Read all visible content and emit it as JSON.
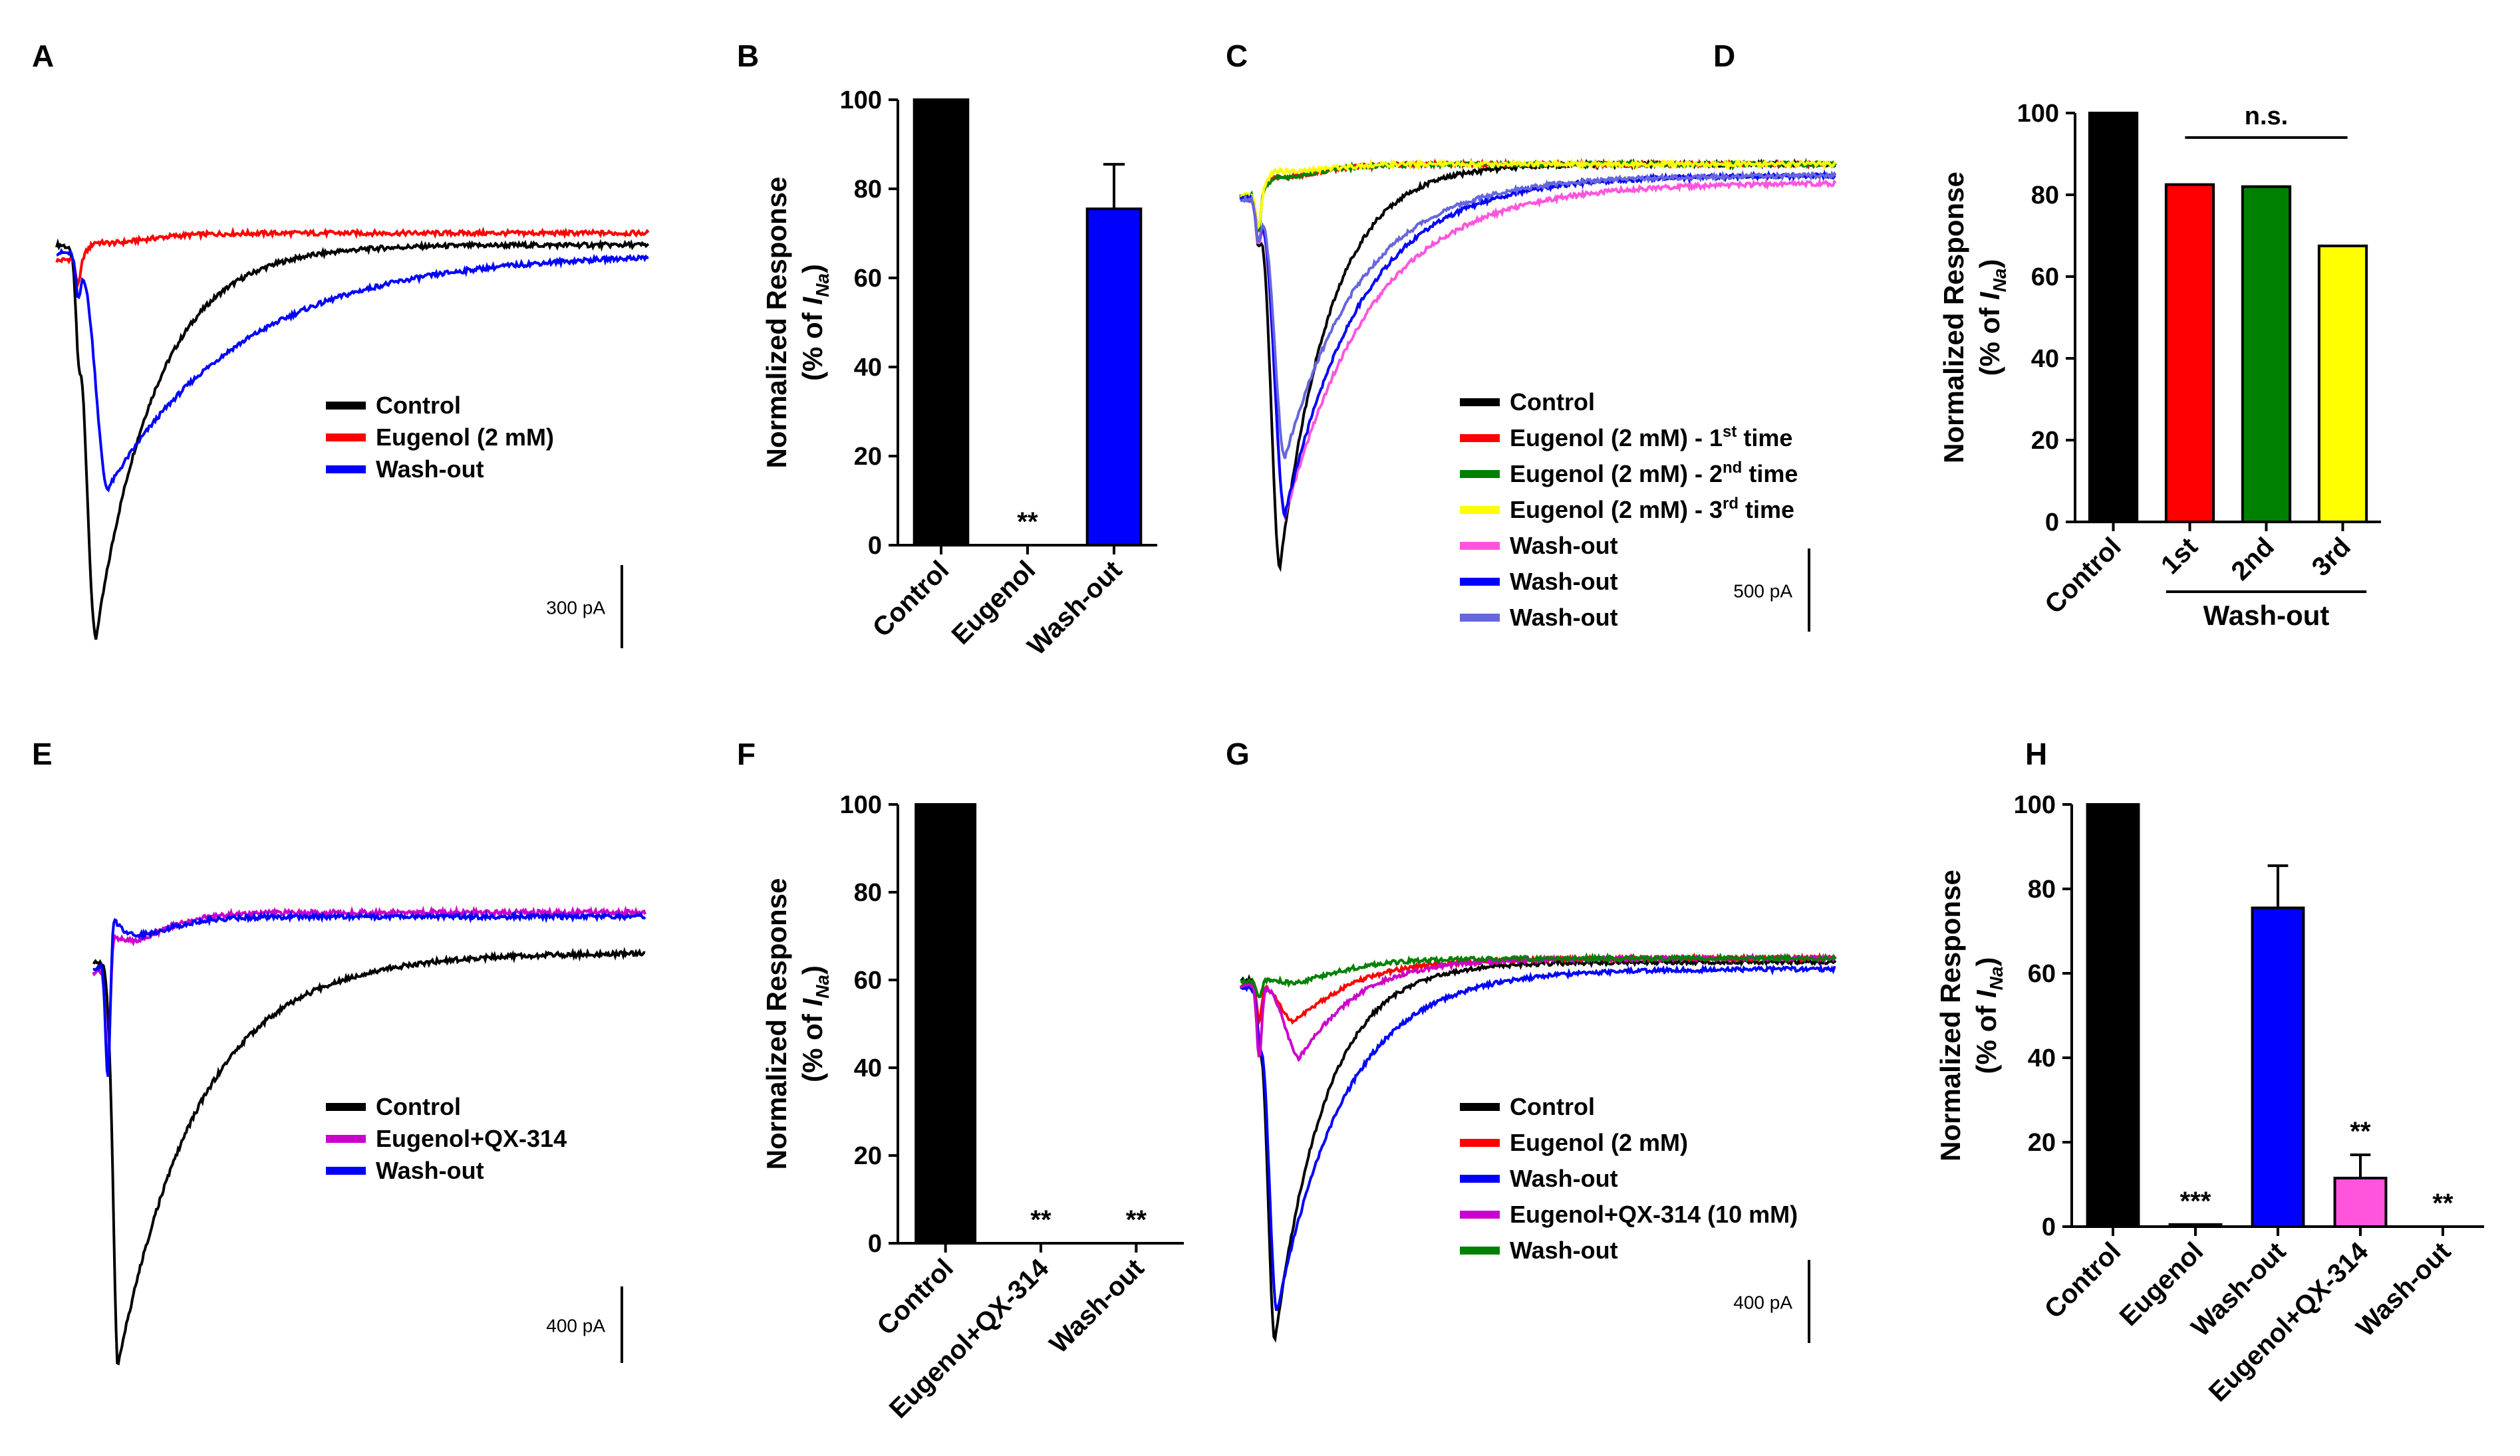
{
  "figure": {
    "colors": {
      "black": "#000000",
      "red": "#ff0000",
      "blue": "#0000ff",
      "green": "#008000",
      "yellow": "#ffff00",
      "pink": "#ff55dd",
      "magenta": "#cc00cc",
      "lavender": "#6666dd"
    }
  },
  "chart_data": [
    {
      "id": "A",
      "panel_label": "A",
      "type": "line",
      "description_free": true,
      "x": [
        0,
        2,
        4,
        6,
        10,
        15,
        25,
        40,
        70
      ],
      "series": [
        {
          "name": "Control",
          "color": "#000000",
          "start": 0,
          "artifact": -0.15,
          "artifact_t": 2.2,
          "peak": -1,
          "peak_t": 4,
          "rise": 1.3,
          "decay": 6,
          "end": 0
        },
        {
          "name": "Eugenol (2 mM)",
          "color": "#ff0000",
          "start": -0.05,
          "artifact": -0.07,
          "artifact_t": 2.2,
          "peak": 0.03,
          "peak_t": 4,
          "rise": 1,
          "decay": 3,
          "end": 0.03
        },
        {
          "name": "Wash-out",
          "color": "#0000ff",
          "start": -0.02,
          "artifact": -0.1,
          "artifact_t": 2.2,
          "peak": -0.6,
          "peak_t": 5.2,
          "rise": 1.6,
          "decay": 14,
          "end": -0.02
        }
      ],
      "legend": [
        "Control",
        "Eugenol (2 mM)",
        "Wash-out"
      ],
      "scalebar": "300 pA"
    },
    {
      "id": "B",
      "panel_label": "B",
      "type": "bar",
      "ylabel": "Normalized Response\n(% of I_Na)",
      "ylim": [
        0,
        100
      ],
      "yticks": [
        0,
        20,
        40,
        60,
        80,
        100
      ],
      "categories": [
        "Control",
        "Eugenol",
        "Wash-out"
      ],
      "values": [
        100,
        0,
        75.5
      ],
      "errors": [
        0,
        0,
        10
      ],
      "colors": [
        "#000000",
        "#ffffff",
        "#0000ff"
      ],
      "annotations": [
        "",
        "**",
        ""
      ]
    },
    {
      "id": "C",
      "panel_label": "C",
      "type": "line",
      "series": [
        {
          "name": "Control",
          "color": "#000000",
          "start": 0,
          "artifact": -0.1,
          "artifact_t": 1.8,
          "peak": -1,
          "peak_t": 4,
          "rise": 1.2,
          "decay": 5,
          "end": 0.1
        },
        {
          "name": "Eugenol (2 mM) - 1st time",
          "color": "#ff0000",
          "start": 0,
          "artifact": -0.1,
          "artifact_t": 1.8,
          "peak": 0.03,
          "peak_t": 3.5,
          "rise": 1,
          "decay": 4,
          "end": 0.1
        },
        {
          "name": "Eugenol (2 mM) - 2nd time",
          "color": "#008000",
          "start": 0,
          "artifact": -0.1,
          "artifact_t": 1.8,
          "peak": 0.03,
          "peak_t": 3.5,
          "rise": 1,
          "decay": 4,
          "end": 0.1
        },
        {
          "name": "Eugenol (2 mM) - 3rd time",
          "color": "#ffff00",
          "start": 0,
          "artifact": -0.1,
          "artifact_t": 1.8,
          "peak": 0.05,
          "peak_t": 3.5,
          "rise": 1,
          "decay": 4,
          "end": 0.1
        },
        {
          "name": "Wash-out",
          "color": "#ff55dd",
          "start": 0,
          "artifact": -0.1,
          "artifact_t": 1.8,
          "peak": -0.85,
          "peak_t": 4.5,
          "rise": 1.4,
          "decay": 9,
          "end": 0.05
        },
        {
          "name": "Wash-out",
          "color": "#0000ff",
          "start": 0,
          "artifact": -0.1,
          "artifact_t": 1.8,
          "peak": -0.85,
          "peak_t": 4.5,
          "rise": 1.4,
          "decay": 8,
          "end": 0.07
        },
        {
          "name": "Wash-out",
          "color": "#6666dd",
          "start": 0,
          "artifact": -0.1,
          "artifact_t": 1.8,
          "peak": -0.7,
          "peak_t": 4.5,
          "rise": 1.4,
          "decay": 8,
          "end": 0.07
        }
      ],
      "legend": [
        {
          "main": "Eugenol (2 mM) - 1",
          "sup": "",
          "tail": ""
        },
        {
          "main": "Control",
          "sup": "",
          "tail": ""
        }
      ],
      "legend_rows": [
        {
          "text": "Control",
          "sup": "",
          "tail": ""
        },
        {
          "text": "Eugenol (2 mM) - 1",
          "sup": "st",
          "tail": " time"
        },
        {
          "text": "Eugenol (2 mM) - 2",
          "sup": "nd",
          "tail": " time"
        },
        {
          "text": "Eugenol (2 mM) - 3",
          "sup": "rd",
          "tail": " time"
        },
        {
          "text": "Wash-out",
          "sup": "",
          "tail": ""
        },
        {
          "text": "Wash-out",
          "sup": "",
          "tail": ""
        },
        {
          "text": "Wash-out",
          "sup": "",
          "tail": ""
        }
      ],
      "scalebar": "500 pA"
    },
    {
      "id": "D",
      "panel_label": "D",
      "type": "bar",
      "ylabel": "Normalized Response\n(% of I_Na)",
      "ylim": [
        0,
        100
      ],
      "yticks": [
        0,
        20,
        40,
        60,
        80,
        100
      ],
      "categories": [
        "Control",
        "1st",
        "2nd",
        "3rd"
      ],
      "values": [
        100,
        82.5,
        82,
        67.5
      ],
      "errors": [
        0,
        0,
        0,
        0
      ],
      "colors": [
        "#000000",
        "#ff0000",
        "#008000",
        "#ffff00"
      ],
      "annotations": [
        "",
        "",
        "",
        ""
      ],
      "significance": "n.s.",
      "group_label": "Wash-out"
    },
    {
      "id": "E",
      "panel_label": "E",
      "type": "line",
      "series": [
        {
          "name": "Control",
          "color": "#000000",
          "start": 0,
          "artifact": -0.05,
          "artifact_t": 1.7,
          "peak": -1,
          "peak_t": 2.7,
          "rise": 0.7,
          "decay": 9,
          "end": 0.03
        },
        {
          "name": "Eugenol+QX-314",
          "color": "#cc00cc",
          "start": -0.06,
          "artifact": -0.25,
          "artifact_t": 1.6,
          "peak": 0.07,
          "peak_t": 2.3,
          "rise": 0.5,
          "decay": 2,
          "end": 0.13
        },
        {
          "name": "Wash-out",
          "color": "#0000ff",
          "start": -0.04,
          "artifact": -0.3,
          "artifact_t": 1.6,
          "peak": 0.1,
          "peak_t": 2.3,
          "rise": 0.5,
          "decay": 2,
          "end": 0.12
        }
      ],
      "legend": [
        "Control",
        "Eugenol+QX-314",
        "Wash-out"
      ],
      "scalebar": "400 pA"
    },
    {
      "id": "F",
      "panel_label": "F",
      "type": "bar",
      "ylabel": "Normalized Response\n(% of I_Na)",
      "ylim": [
        0,
        100
      ],
      "yticks": [
        0,
        20,
        40,
        60,
        80,
        100
      ],
      "categories": [
        "Control",
        "Eugenol+QX-314",
        "Wash-out"
      ],
      "values": [
        100,
        0,
        0
      ],
      "errors": [
        0,
        0,
        0
      ],
      "colors": [
        "#000000",
        "#ffffff",
        "#ffffff"
      ],
      "annotations": [
        "",
        "**",
        "**"
      ]
    },
    {
      "id": "G",
      "panel_label": "G",
      "type": "line",
      "series": [
        {
          "name": "Control",
          "color": "#000000",
          "start": 0,
          "artifact": -0.1,
          "artifact_t": 1.9,
          "peak": -1,
          "peak_t": 3.5,
          "rise": 1,
          "decay": 5,
          "end": 0.06
        },
        {
          "name": "Eugenol (2 mM)",
          "color": "#ff0000",
          "start": -0.01,
          "artifact": -0.1,
          "artifact_t": 1.9,
          "peak": -0.12,
          "peak_t": 5.5,
          "rise": 2,
          "decay": 7,
          "end": 0.07
        },
        {
          "name": "Wash-out",
          "color": "#0000ff",
          "start": -0.02,
          "artifact": -0.1,
          "artifact_t": 1.9,
          "peak": -0.9,
          "peak_t": 3.7,
          "rise": 1.1,
          "decay": 7,
          "end": 0.04
        },
        {
          "name": "Eugenol+QX-314 (10 mM)",
          "color": "#cc00cc",
          "start": -0.01,
          "artifact": -0.2,
          "artifact_t": 1.9,
          "peak": -0.22,
          "peak_t": 6,
          "rise": 2,
          "decay": 6,
          "end": 0.07
        },
        {
          "name": "Wash-out",
          "color": "#008000",
          "start": 0,
          "artifact": -0.05,
          "artifact_t": 1.9,
          "peak": -0.02,
          "peak_t": 6,
          "rise": 2,
          "decay": 8,
          "end": 0.07
        }
      ],
      "legend": [
        "Control",
        "Eugenol (2 mM)",
        "Wash-out",
        "Eugenol+QX-314 (10 mM)",
        "Wash-out"
      ],
      "scalebar": "400 pA"
    },
    {
      "id": "H",
      "panel_label": "H",
      "type": "bar",
      "ylabel": "Normalized Response\n(% of I_Na)",
      "ylim": [
        0,
        100
      ],
      "yticks": [
        0,
        20,
        40,
        60,
        80,
        100
      ],
      "categories": [
        "Control",
        "Eugenol",
        "Wash-out",
        "Eugenol+QX-314",
        "Wash-out"
      ],
      "values": [
        100,
        0.5,
        75.5,
        11.5,
        0
      ],
      "errors": [
        0,
        0,
        10,
        5.5,
        0
      ],
      "colors": [
        "#000000",
        "#000000",
        "#0000ff",
        "#ff55dd",
        "#ffffff"
      ],
      "annotations": [
        "",
        "***",
        "",
        "**",
        "**"
      ]
    }
  ]
}
